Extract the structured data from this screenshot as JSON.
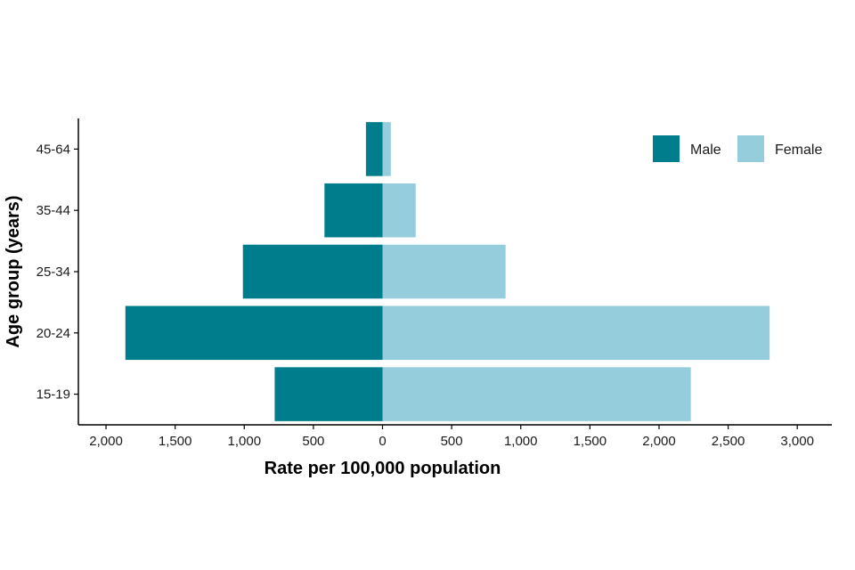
{
  "chart_data": {
    "type": "bar",
    "orientation": "horizontal",
    "layout": "population-pyramid",
    "title": "",
    "xlabel": "Rate per 100,000 population",
    "ylabel": "Age group (years)",
    "categories": [
      "15-19",
      "20-24",
      "25-34",
      "35-44",
      "45-64"
    ],
    "series": [
      {
        "name": "Male",
        "side": "left",
        "color": "#007D8C",
        "values": [
          780,
          1860,
          1010,
          420,
          120
        ]
      },
      {
        "name": "Female",
        "side": "right",
        "color": "#96CDDD",
        "values": [
          2230,
          2800,
          890,
          240,
          60
        ]
      }
    ],
    "xlim": [
      -2200,
      3250
    ],
    "x_ticks": [
      -2000,
      -1500,
      -1000,
      -500,
      0,
      500,
      1000,
      1500,
      2000,
      2500,
      3000
    ],
    "x_tick_labels": [
      "2,000",
      "1,500",
      "1,000",
      "500",
      "0",
      "500",
      "1,000",
      "1,500",
      "2,000",
      "2,500",
      "3,000"
    ],
    "legend": {
      "position": "top-right",
      "entries": [
        "Male",
        "Female"
      ]
    },
    "grid": false
  }
}
